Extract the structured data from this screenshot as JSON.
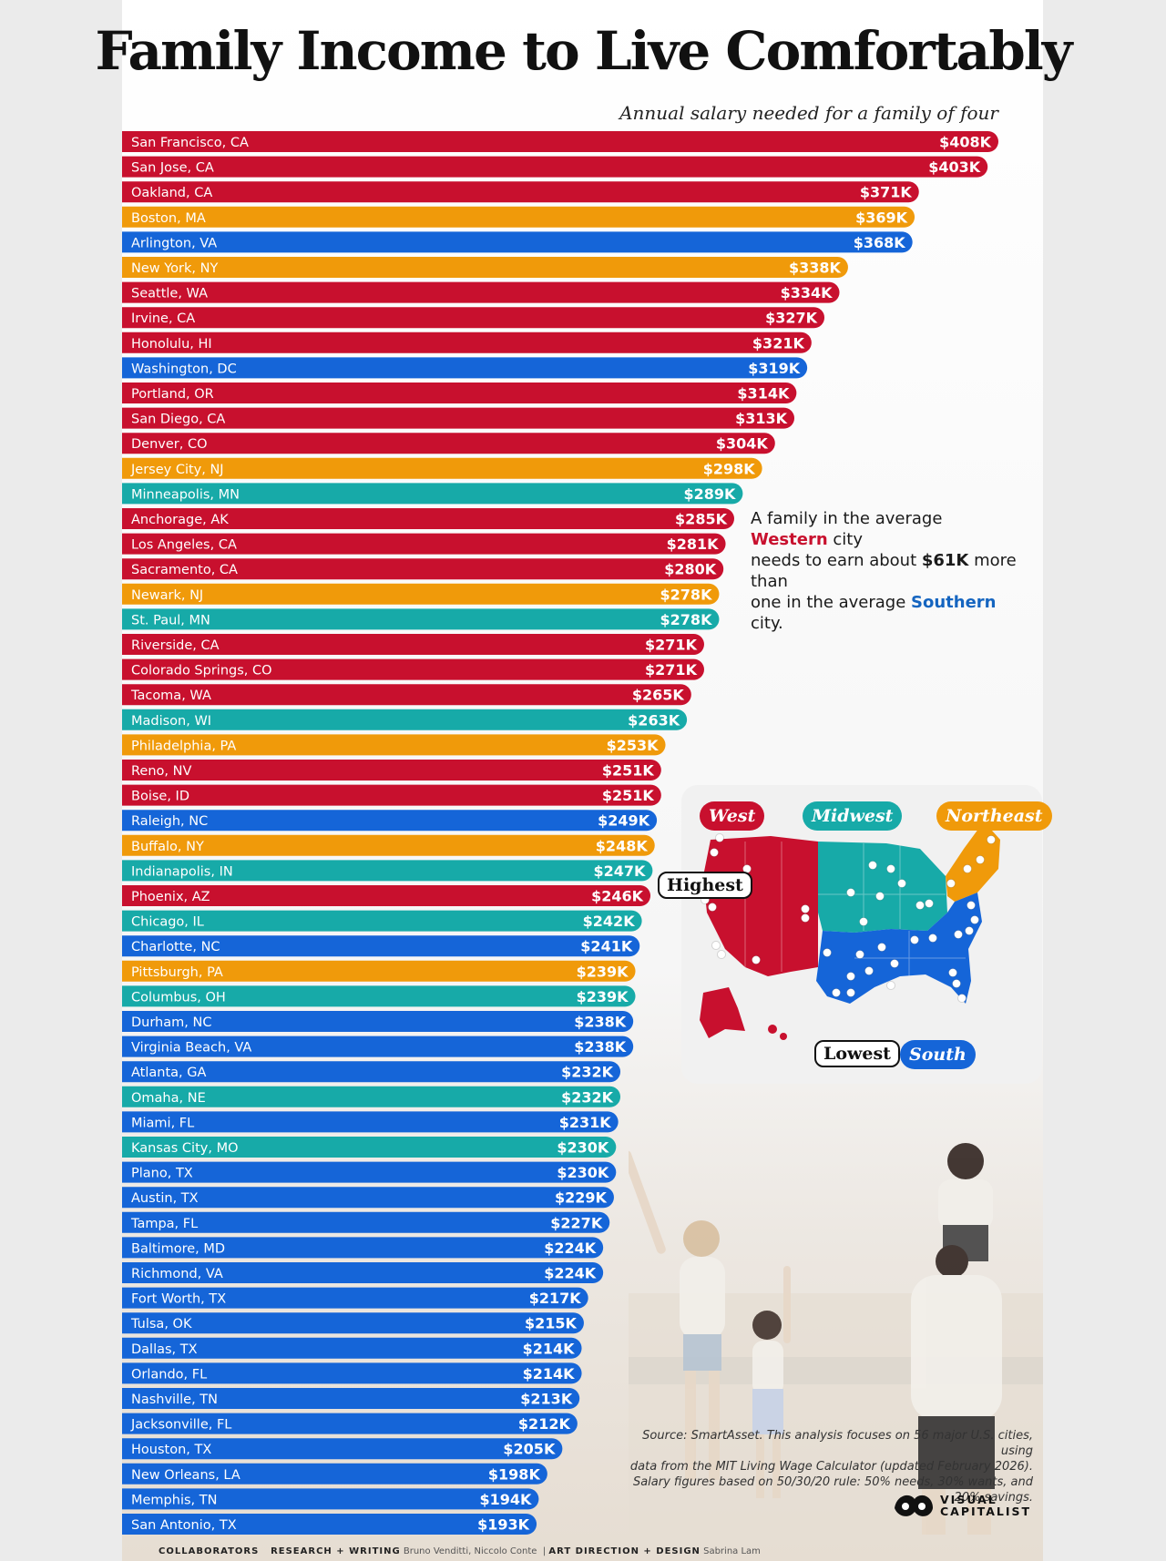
{
  "chart_data": {
    "type": "bar",
    "orientation": "horizontal",
    "title": "Family Income to Live Comfortably",
    "subtitle": "Annual salary needed for a family of four",
    "categories": [
      "San Francisco, CA",
      "San Jose, CA",
      "Oakland, CA",
      "Boston, MA",
      "Arlington, VA",
      "New York, NY",
      "Seattle, WA",
      "Irvine, CA",
      "Honolulu, HI",
      "Washington, DC",
      "Portland, OR",
      "San Diego, CA",
      "Denver, CO",
      "Jersey City, NJ",
      "Minneapolis, MN",
      "Anchorage, AK",
      "Los Angeles, CA",
      "Sacramento, CA",
      "Newark, NJ",
      "St. Paul, MN",
      "Riverside, CA",
      "Colorado Springs, CO",
      "Tacoma, WA",
      "Madison, WI",
      "Philadelphia, PA",
      "Reno, NV",
      "Boise, ID",
      "Raleigh, NC",
      "Buffalo, NY",
      "Indianapolis, IN",
      "Phoenix, AZ",
      "Chicago, IL",
      "Charlotte, NC",
      "Pittsburgh, PA",
      "Columbus, OH",
      "Durham, NC",
      "Virginia Beach, VA",
      "Atlanta, GA",
      "Omaha, NE",
      "Miami, FL",
      "Kansas City, MO",
      "Plano, TX",
      "Austin, TX",
      "Tampa, FL",
      "Baltimore, MD",
      "Richmond, VA",
      "Fort Worth, TX",
      "Tulsa, OK",
      "Dallas, TX",
      "Orlando, FL",
      "Nashville, TN",
      "Jacksonville, FL",
      "Houston, TX",
      "New Orleans, LA",
      "Memphis, TN",
      "San Antonio, TX"
    ],
    "values": [
      408,
      403,
      371,
      369,
      368,
      338,
      334,
      327,
      321,
      319,
      314,
      313,
      304,
      298,
      289,
      285,
      281,
      280,
      278,
      278,
      271,
      271,
      265,
      263,
      253,
      251,
      251,
      249,
      248,
      247,
      246,
      242,
      241,
      239,
      239,
      238,
      238,
      232,
      232,
      231,
      230,
      230,
      229,
      227,
      224,
      224,
      217,
      215,
      214,
      214,
      213,
      212,
      205,
      198,
      194,
      193
    ],
    "value_labels": [
      "$408K",
      "$403K",
      "$371K",
      "$369K",
      "$368K",
      "$338K",
      "$334K",
      "$327K",
      "$321K",
      "$319K",
      "$314K",
      "$313K",
      "$304K",
      "$298K",
      "$289K",
      "$285K",
      "$281K",
      "$280K",
      "$278K",
      "$278K",
      "$271K",
      "$271K",
      "$265K",
      "$263K",
      "$253K",
      "$251K",
      "$251K",
      "$249K",
      "$248K",
      "$247K",
      "$246K",
      "$242K",
      "$241K",
      "$239K",
      "$239K",
      "$238K",
      "$238K",
      "$232K",
      "$232K",
      "$231K",
      "$230K",
      "$230K",
      "$229K",
      "$227K",
      "$224K",
      "$224K",
      "$217K",
      "$215K",
      "$214K",
      "$214K",
      "$213K",
      "$212K",
      "$205K",
      "$198K",
      "$194K",
      "$193K"
    ],
    "regions": [
      "West",
      "West",
      "West",
      "Northeast",
      "South",
      "Northeast",
      "West",
      "West",
      "West",
      "South",
      "West",
      "West",
      "West",
      "Northeast",
      "Midwest",
      "West",
      "West",
      "West",
      "Northeast",
      "Midwest",
      "West",
      "West",
      "West",
      "Midwest",
      "Northeast",
      "West",
      "West",
      "South",
      "Northeast",
      "Midwest",
      "West",
      "Midwest",
      "South",
      "Northeast",
      "Midwest",
      "South",
      "South",
      "South",
      "Midwest",
      "South",
      "Midwest",
      "South",
      "South",
      "South",
      "South",
      "South",
      "South",
      "South",
      "South",
      "South",
      "South",
      "South",
      "South",
      "South",
      "South",
      "South"
    ],
    "unit": "thousand USD per year",
    "xlim": [
      0,
      408
    ],
    "grid": false,
    "legend_position": "map inset, right side"
  },
  "colors": {
    "West": "#c8102e",
    "Midwest": "#17aaa8",
    "Northeast": "#f09a0a",
    "South": "#1565d8"
  },
  "callout": {
    "line1_pre": "A family in the average ",
    "line1_west": "Western",
    "line1_post": " city",
    "line2_pre": "needs to earn about ",
    "line2_amount": "$61K",
    "line2_post": " more than",
    "line3_pre": "one in the average ",
    "line3_south": "Southern",
    "line3_post": " city."
  },
  "map": {
    "legend_west": "West",
    "legend_midwest": "Midwest",
    "legend_northeast": "Northeast",
    "legend_south": "South",
    "tag_highest": "Highest",
    "tag_lowest": "Lowest"
  },
  "source": {
    "line1": "Source: SmartAsset. This analysis focuses on 56 major U.S. cities, using",
    "line2": "data from the MIT Living Wage Calculator (updated February 2026).",
    "line3": "Salary figures based on 50/30/20 rule: 50% needs, 30% wants, and 20% savings."
  },
  "logo": {
    "line1": "VISUAL",
    "line2": "CAPITALIST"
  },
  "credits": {
    "label": "COLLABORATORS",
    "research_label": "RESEARCH + WRITING",
    "research_names": "Bruno Venditti, Niccolo Conte",
    "design_label": "ART DIRECTION + DESIGN",
    "design_names": "Sabrina Lam"
  }
}
